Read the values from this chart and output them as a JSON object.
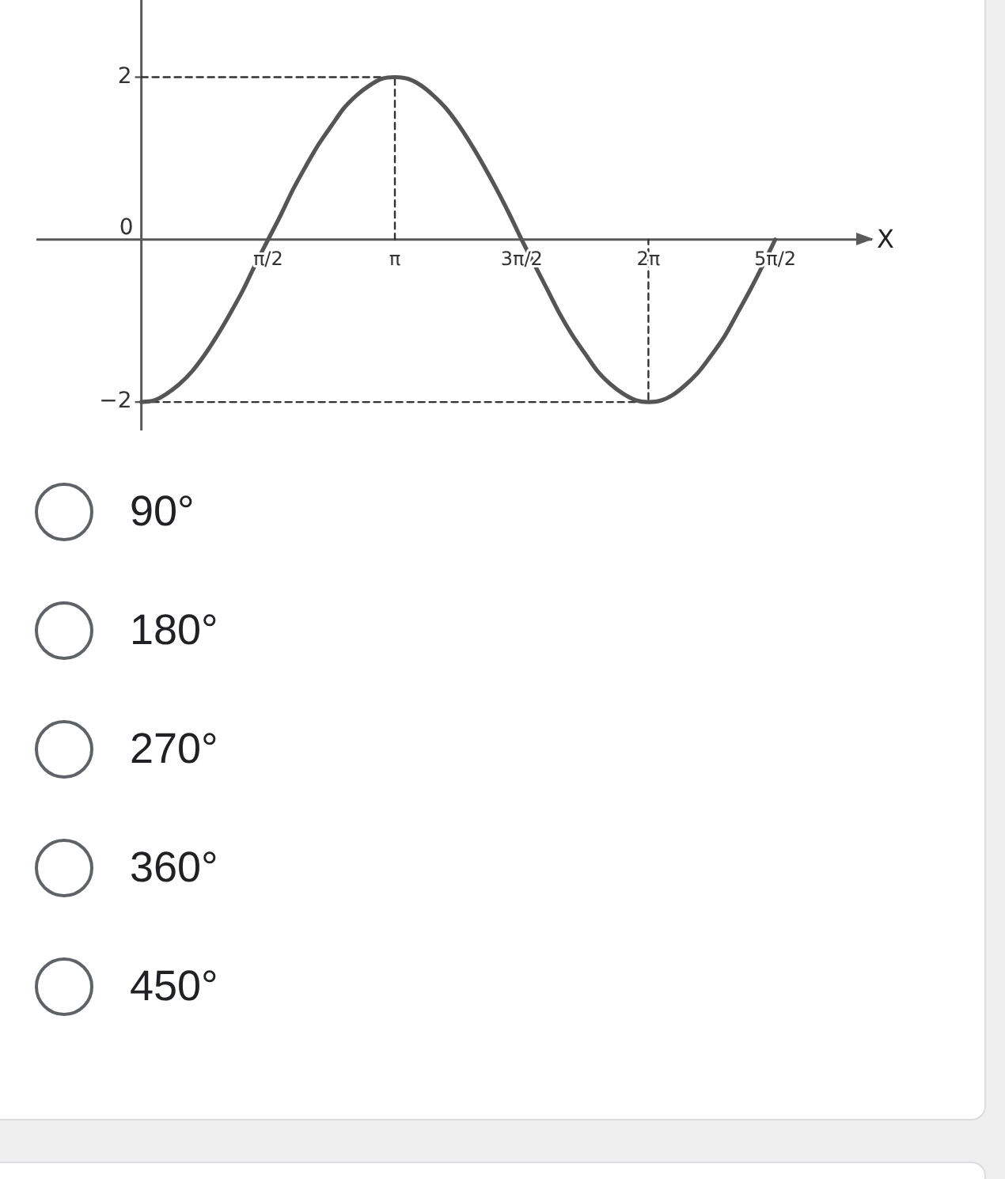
{
  "chart_data": {
    "type": "line",
    "xlabel": "X",
    "xlim": [
      -1.3,
      9.05
    ],
    "ylim": [
      -2.35,
      2.95
    ],
    "xticks": [
      {
        "value": 1.57,
        "label": "π/2"
      },
      {
        "value": 3.14,
        "label": "π"
      },
      {
        "value": 4.71,
        "label": "3π/2"
      },
      {
        "value": 6.28,
        "label": "2π"
      },
      {
        "value": 7.85,
        "label": "5π/2"
      }
    ],
    "yticks": [
      2,
      0,
      {
        "value": -2,
        "label": "−2"
      }
    ],
    "series": [
      {
        "color": "#555555",
        "x": [
          0,
          0.16,
          0.31,
          0.47,
          0.63,
          0.79,
          0.94,
          1.1,
          1.26,
          1.41,
          1.57,
          1.73,
          1.88,
          2.04,
          2.2,
          2.36,
          2.51,
          2.67,
          2.83,
          2.98,
          3.14,
          3.3,
          3.46,
          3.61,
          3.77,
          3.93,
          4.08,
          4.24,
          4.4,
          4.56,
          4.71,
          4.87,
          5.03,
          5.18,
          5.34,
          5.5,
          5.65,
          5.81,
          5.97,
          6.13,
          6.28,
          6.44,
          6.6,
          6.75,
          6.91,
          7.07,
          7.23,
          7.38,
          7.54,
          7.7,
          7.85
        ],
        "values": [
          -2,
          -1.98,
          -1.9,
          -1.78,
          -1.62,
          -1.41,
          -1.18,
          -0.91,
          -0.62,
          -0.31,
          0,
          0.31,
          0.62,
          0.91,
          1.18,
          1.41,
          1.62,
          1.78,
          1.9,
          1.98,
          2,
          1.98,
          1.9,
          1.78,
          1.62,
          1.41,
          1.18,
          0.91,
          0.62,
          0.31,
          0,
          -0.31,
          -0.62,
          -0.91,
          -1.18,
          -1.41,
          -1.62,
          -1.78,
          -1.9,
          -1.98,
          -2,
          -1.98,
          -1.9,
          -1.78,
          -1.62,
          -1.41,
          -1.18,
          -0.91,
          -0.62,
          -0.31,
          0
        ]
      },
      {
        "color": "#333333",
        "line_style": "dashed",
        "x": [
          0,
          3.14,
          3.14
        ],
        "values": [
          2,
          2,
          0
        ]
      },
      {
        "color": "#333333",
        "line_style": "dashed",
        "x": [
          0,
          6.28,
          6.28
        ],
        "values": [
          -2,
          -2,
          0
        ]
      }
    ],
    "annotations": [
      "90°",
      "180°",
      "270°",
      "360°",
      "450°"
    ]
  }
}
